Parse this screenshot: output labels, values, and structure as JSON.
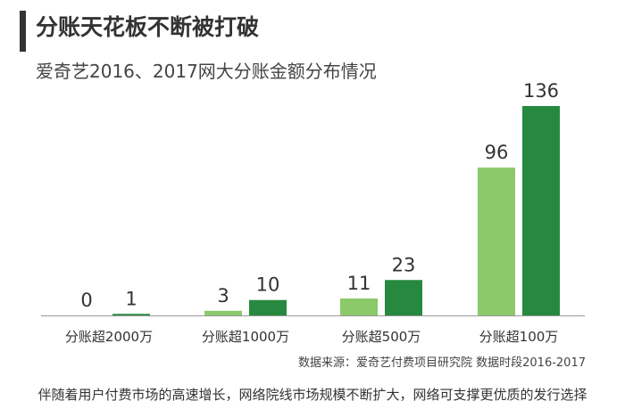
{
  "header": {
    "title": "分账天花板不断被打破",
    "subtitle": "爱奇艺2016、2017网大分账金额分布情况"
  },
  "chart_data": {
    "type": "bar",
    "categories": [
      "分账超2000万",
      "分账超1000万",
      "分账超500万",
      "分账超100万"
    ],
    "series": [
      {
        "values": [
          0,
          3,
          11,
          96
        ],
        "color": "#8bc96a"
      },
      {
        "values": [
          1,
          10,
          23,
          136
        ],
        "color": "#26893f"
      }
    ],
    "ylim": [
      0,
      136
    ],
    "grid": false,
    "legend": "none"
  },
  "footer": {
    "source": "数据来源：爱奇艺付费项目研究院 数据时段2016-2017",
    "caption": "伴随着用户付费市场的高速增长，网络院线市场规模不断扩大，网络可支撑更优质的发行选择"
  }
}
